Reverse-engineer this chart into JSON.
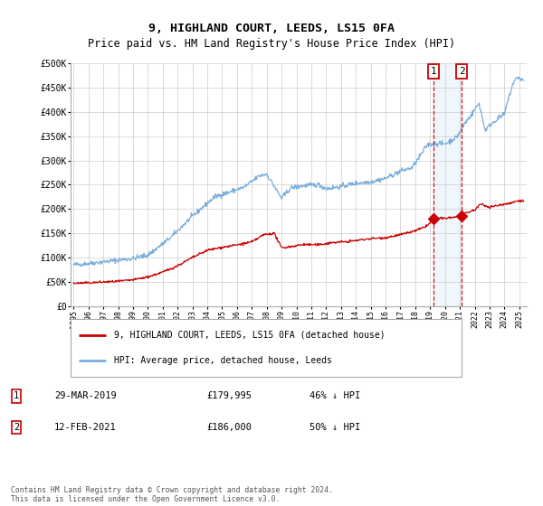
{
  "title": "9, HIGHLAND COURT, LEEDS, LS15 0FA",
  "subtitle": "Price paid vs. HM Land Registry's House Price Index (HPI)",
  "title_fontsize": 9.5,
  "subtitle_fontsize": 8.5,
  "ylabel_ticks": [
    "£0",
    "£50K",
    "£100K",
    "£150K",
    "£200K",
    "£250K",
    "£300K",
    "£350K",
    "£400K",
    "£450K",
    "£500K"
  ],
  "ylim": [
    0,
    500000
  ],
  "xlim_start": 1994.8,
  "xlim_end": 2025.5,
  "background_color": "#ffffff",
  "plot_bg_color": "#ffffff",
  "grid_color": "#cccccc",
  "hpi_line_color": "#7aaddb",
  "price_line_color": "#cc0000",
  "dashed_line_color": "#cc0000",
  "highlight_bg_color": "#d8eaf8",
  "sale1_date": 2019.24,
  "sale1_price": 179995,
  "sale2_date": 2021.12,
  "sale2_price": 186000,
  "legend_entry1": "9, HIGHLAND COURT, LEEDS, LS15 0FA (detached house)",
  "legend_entry2": "HPI: Average price, detached house, Leeds",
  "note1_label": "1",
  "note1_date": "29-MAR-2019",
  "note1_price": "£179,995",
  "note1_hpi": "46% ↓ HPI",
  "note2_label": "2",
  "note2_date": "12-FEB-2021",
  "note2_price": "£186,000",
  "note2_hpi": "50% ↓ HPI",
  "footer": "Contains HM Land Registry data © Crown copyright and database right 2024.\nThis data is licensed under the Open Government Licence v3.0."
}
